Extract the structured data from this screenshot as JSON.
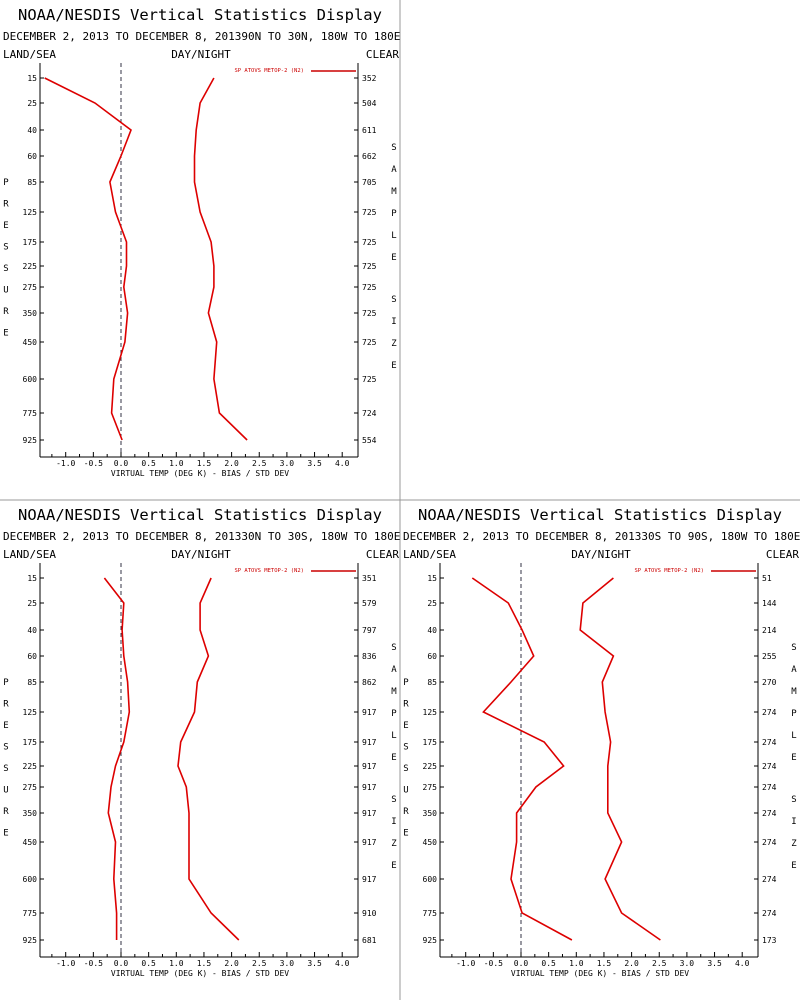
{
  "chart_data": [
    {
      "type": "line",
      "title": "NOAA/NESDIS Vertical Statistics Display",
      "subtitle": "DECEMBER 2, 2013 TO DECEMBER 8, 201390N TO 30N, 180W TO 180E",
      "left_label": "LAND/SEA",
      "center_label": "DAY/NIGHT",
      "right_label": "CLEAR",
      "legend": "SP ATOVS METOP-2 (N2)",
      "xlabel": "VIRTUAL TEMP (DEG K) - BIAS / STD DEV",
      "ylabel": "PRESSURE",
      "y2label": "SAMPLE SIZE",
      "xlim": [
        -1.5,
        4.25
      ],
      "xticks": [
        "-1.0",
        "-0.5",
        "0.0",
        "0.5",
        "1.0",
        "1.5",
        "2.0",
        "2.5",
        "3.0",
        "3.5",
        "4.0"
      ],
      "pressure_levels": [
        "15",
        "25",
        "40",
        "60",
        "85",
        "125",
        "175",
        "225",
        "275",
        "350",
        "450",
        "600",
        "775",
        "925"
      ],
      "sample_sizes": [
        "352",
        "504",
        "611",
        "662",
        "705",
        "725",
        "725",
        "725",
        "725",
        "725",
        "725",
        "725",
        "724",
        "554"
      ],
      "series": [
        {
          "values": [
            -1.38,
            -0.47,
            0.18,
            0.0,
            -0.2,
            -0.1,
            0.1,
            0.1,
            0.05,
            0.12,
            0.07,
            -0.13,
            -0.17,
            0.02
          ]
        },
        {
          "values": [
            1.68,
            1.43,
            1.36,
            1.33,
            1.33,
            1.43,
            1.63,
            1.68,
            1.68,
            1.58,
            1.73,
            1.68,
            1.78,
            2.28
          ]
        }
      ]
    },
    {
      "type": "line",
      "title": "NOAA/NESDIS Vertical Statistics Display",
      "subtitle": "DECEMBER 2, 2013 TO DECEMBER 8, 201330N TO 30S, 180W TO 180E",
      "left_label": "LAND/SEA",
      "center_label": "DAY/NIGHT",
      "right_label": "CLEAR",
      "legend": "SP ATOVS METOP-2 (N2)",
      "xlabel": "VIRTUAL TEMP (DEG K) - BIAS / STD DEV",
      "ylabel": "PRESSURE",
      "y2label": "SAMPLE SIZE",
      "xlim": [
        -1.5,
        4.25
      ],
      "xticks": [
        "-1.0",
        "-0.5",
        "0.0",
        "0.5",
        "1.0",
        "1.5",
        "2.0",
        "2.5",
        "3.0",
        "3.5",
        "4.0"
      ],
      "pressure_levels": [
        "15",
        "25",
        "40",
        "60",
        "85",
        "125",
        "175",
        "225",
        "275",
        "350",
        "450",
        "600",
        "775",
        "925"
      ],
      "sample_sizes": [
        "351",
        "579",
        "797",
        "836",
        "862",
        "917",
        "917",
        "917",
        "917",
        "917",
        "917",
        "917",
        "910",
        "681"
      ],
      "series": [
        {
          "values": [
            -0.3,
            0.05,
            0.02,
            0.05,
            0.12,
            0.15,
            0.05,
            -0.1,
            -0.18,
            -0.23,
            -0.1,
            -0.13,
            -0.08,
            -0.08
          ]
        },
        {
          "values": [
            1.63,
            1.43,
            1.43,
            1.58,
            1.38,
            1.33,
            1.08,
            1.03,
            1.18,
            1.23,
            1.23,
            1.23,
            1.63,
            2.13
          ]
        }
      ]
    },
    {
      "type": "line",
      "title": "NOAA/NESDIS Vertical Statistics Display",
      "subtitle": "DECEMBER 2, 2013 TO DECEMBER 8, 201330S TO 90S, 180W TO 180E",
      "left_label": "LAND/SEA",
      "center_label": "DAY/NIGHT",
      "right_label": "CLEAR",
      "legend": "SP ATOVS METOP-2 (N2)",
      "xlabel": "VIRTUAL TEMP (DEG K) - BIAS / STD DEV",
      "ylabel": "PRESSURE",
      "y2label": "SAMPLE SIZE",
      "xlim": [
        -1.5,
        4.25
      ],
      "xticks": [
        "-1.0",
        "-0.5",
        "0.0",
        "0.5",
        "1.0",
        "1.5",
        "2.0",
        "2.5",
        "3.0",
        "3.5",
        "4.0"
      ],
      "pressure_levels": [
        "15",
        "25",
        "40",
        "60",
        "85",
        "125",
        "175",
        "225",
        "275",
        "350",
        "450",
        "600",
        "775",
        "925"
      ],
      "sample_sizes": [
        "51",
        "144",
        "214",
        "255",
        "270",
        "274",
        "274",
        "274",
        "274",
        "274",
        "274",
        "274",
        "274",
        "173"
      ],
      "series": [
        {
          "values": [
            -0.88,
            -0.23,
            0.02,
            0.23,
            -0.18,
            -0.68,
            0.42,
            0.77,
            0.27,
            -0.08,
            -0.08,
            -0.18,
            0.02,
            0.92
          ]
        },
        {
          "values": [
            1.67,
            1.12,
            1.07,
            1.67,
            1.47,
            1.52,
            1.62,
            1.57,
            1.57,
            1.57,
            1.82,
            1.52,
            1.82,
            2.52
          ]
        }
      ]
    }
  ]
}
